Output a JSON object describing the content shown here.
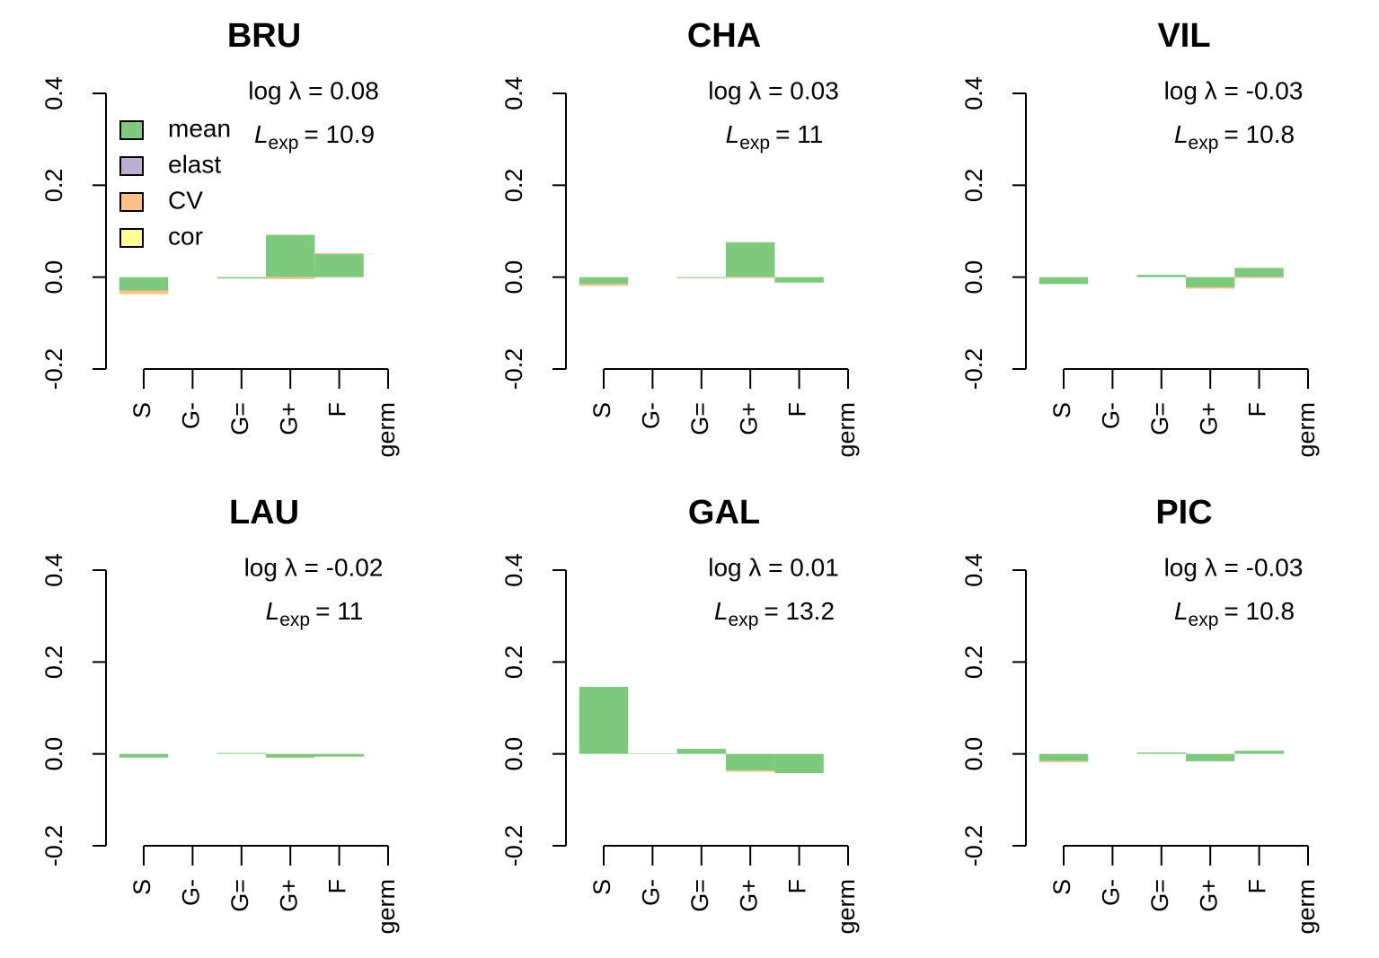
{
  "chart_data": [
    {
      "type": "bar",
      "title": "BRU",
      "annotation": "log λ = 0.08",
      "lexp_text": [
        "L",
        "exp",
        "= 10.9"
      ],
      "legend": "topleft",
      "categories": [
        "S",
        "G-",
        "G=",
        "G+",
        "F",
        "germ"
      ],
      "series": [
        {
          "name": "mean",
          "color": "#7fc97f",
          "values": [
            -0.029,
            0,
            -0.003,
            0.092,
            0.05,
            null
          ]
        },
        {
          "name": "elast",
          "color": "#beaed4",
          "values": [
            0,
            0,
            0,
            0,
            0,
            null
          ]
        },
        {
          "name": "CV",
          "color": "#fdc086",
          "values": [
            -0.008,
            0,
            0,
            -0.004,
            0.002,
            null
          ]
        },
        {
          "name": "cor",
          "color": "#ffff99",
          "values": [
            0,
            0,
            0,
            0,
            0,
            null
          ]
        }
      ],
      "ylim": [
        -0.2,
        0.4
      ],
      "yticks": [
        -0.2,
        {
          "value": 0,
          "label": "0.0"
        },
        0.2,
        0.4
      ]
    },
    {
      "type": "bar",
      "title": "CHA",
      "annotation": "log λ = 0.03",
      "lexp_text": [
        "L",
        "exp",
        "= 11"
      ],
      "categories": [
        "S",
        "G-",
        "G=",
        "G+",
        "F",
        "germ"
      ],
      "series": [
        {
          "name": "mean",
          "color": "#7fc97f",
          "values": [
            -0.015,
            0,
            -0.002,
            0.076,
            -0.012,
            null
          ]
        },
        {
          "name": "elast",
          "color": "#beaed4",
          "values": [
            0,
            0,
            0,
            0,
            0,
            null
          ]
        },
        {
          "name": "CV",
          "color": "#fdc086",
          "values": [
            -0.004,
            0,
            0,
            -0.002,
            0,
            null
          ]
        },
        {
          "name": "cor",
          "color": "#ffff99",
          "values": [
            0,
            0,
            0,
            0,
            0,
            null
          ]
        }
      ],
      "ylim": [
        -0.2,
        0.4
      ],
      "yticks": [
        -0.2,
        {
          "value": 0,
          "label": "0.0"
        },
        0.2,
        0.4
      ]
    },
    {
      "type": "bar",
      "title": "VIL",
      "annotation": "log λ = -0.03",
      "lexp_text": [
        "L",
        "exp",
        "= 10.8"
      ],
      "categories": [
        "S",
        "G-",
        "G=",
        "G+",
        "F",
        "germ"
      ],
      "series": [
        {
          "name": "mean",
          "color": "#7fc97f",
          "values": [
            -0.015,
            0,
            0.005,
            -0.022,
            0.02,
            null
          ]
        },
        {
          "name": "elast",
          "color": "#beaed4",
          "values": [
            0,
            0,
            0,
            0,
            0,
            null
          ]
        },
        {
          "name": "CV",
          "color": "#fdc086",
          "values": [
            0,
            0,
            0,
            -0.003,
            -0.002,
            null
          ]
        },
        {
          "name": "cor",
          "color": "#ffff99",
          "values": [
            0,
            0,
            0,
            0,
            0,
            null
          ]
        }
      ],
      "ylim": [
        -0.2,
        0.4
      ],
      "yticks": [
        -0.2,
        {
          "value": 0,
          "label": "0.0"
        },
        0.2,
        0.4
      ]
    },
    {
      "type": "bar",
      "title": "LAU",
      "annotation": "log λ = -0.02",
      "lexp_text": [
        "L",
        "exp",
        "= 11"
      ],
      "categories": [
        "S",
        "G-",
        "G=",
        "G+",
        "F",
        "germ"
      ],
      "series": [
        {
          "name": "mean",
          "color": "#7fc97f",
          "values": [
            -0.008,
            0,
            0.002,
            -0.008,
            -0.006,
            null
          ]
        },
        {
          "name": "elast",
          "color": "#beaed4",
          "values": [
            0,
            0,
            0,
            0,
            0,
            null
          ]
        },
        {
          "name": "CV",
          "color": "#fdc086",
          "values": [
            0,
            0,
            0,
            -0.001,
            0,
            null
          ]
        },
        {
          "name": "cor",
          "color": "#ffff99",
          "values": [
            0,
            0,
            0,
            0,
            0,
            null
          ]
        }
      ],
      "ylim": [
        -0.2,
        0.4
      ],
      "yticks": [
        -0.2,
        {
          "value": 0,
          "label": "0.0"
        },
        0.2,
        0.4
      ]
    },
    {
      "type": "bar",
      "title": "GAL",
      "annotation": "log λ = 0.01",
      "lexp_text": [
        "L",
        "exp",
        "= 13.2"
      ],
      "categories": [
        "S",
        "G-",
        "G=",
        "G+",
        "F",
        "germ"
      ],
      "series": [
        {
          "name": "mean",
          "color": "#7fc97f",
          "values": [
            0.146,
            0.001,
            0.011,
            -0.036,
            -0.042,
            null
          ]
        },
        {
          "name": "elast",
          "color": "#beaed4",
          "values": [
            0,
            0,
            0,
            0,
            0,
            null
          ]
        },
        {
          "name": "CV",
          "color": "#fdc086",
          "values": [
            0,
            0,
            0,
            -0.003,
            0,
            null
          ]
        },
        {
          "name": "cor",
          "color": "#ffff99",
          "values": [
            0,
            0,
            0,
            0,
            0,
            null
          ]
        }
      ],
      "ylim": [
        -0.2,
        0.4
      ],
      "yticks": [
        -0.2,
        {
          "value": 0,
          "label": "0.0"
        },
        0.2,
        0.4
      ]
    },
    {
      "type": "bar",
      "title": "PIC",
      "annotation": "log λ = -0.03",
      "lexp_text": [
        "L",
        "exp",
        "= 10.8"
      ],
      "categories": [
        "S",
        "G-",
        "G=",
        "G+",
        "F",
        "germ"
      ],
      "series": [
        {
          "name": "mean",
          "color": "#7fc97f",
          "values": [
            -0.016,
            0,
            0.003,
            -0.016,
            0.007,
            null
          ]
        },
        {
          "name": "elast",
          "color": "#beaed4",
          "values": [
            0,
            0,
            0,
            0,
            0,
            null
          ]
        },
        {
          "name": "CV",
          "color": "#fdc086",
          "values": [
            -0.002,
            0,
            0,
            0,
            0,
            null
          ]
        },
        {
          "name": "cor",
          "color": "#ffff99",
          "values": [
            0,
            0,
            0,
            0,
            0,
            null
          ]
        }
      ],
      "ylim": [
        -0.2,
        0.4
      ],
      "yticks": [
        -0.2,
        {
          "value": 0,
          "label": "0.0"
        },
        0.2,
        0.4
      ]
    }
  ]
}
